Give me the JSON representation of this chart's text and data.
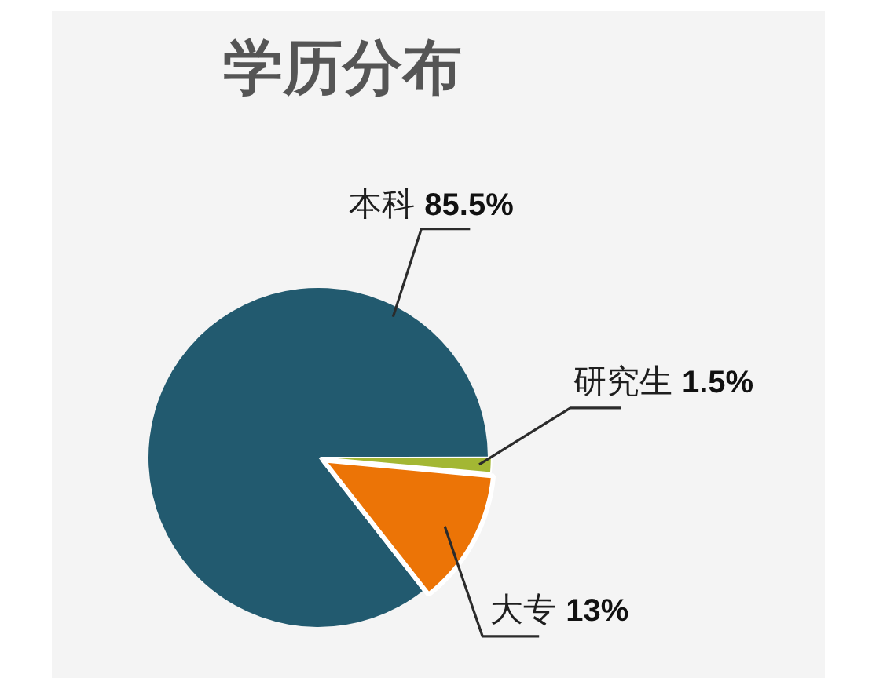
{
  "chart_data": {
    "type": "pie",
    "title": "学历分布",
    "categories": [
      "本科",
      "研究生",
      "大专"
    ],
    "values": [
      85.5,
      1.5,
      13
    ],
    "colors": [
      "#225a6f",
      "#a3b733",
      "#ec7406"
    ],
    "value_labels": [
      "85.5%",
      "1.5%",
      "13%"
    ]
  }
}
